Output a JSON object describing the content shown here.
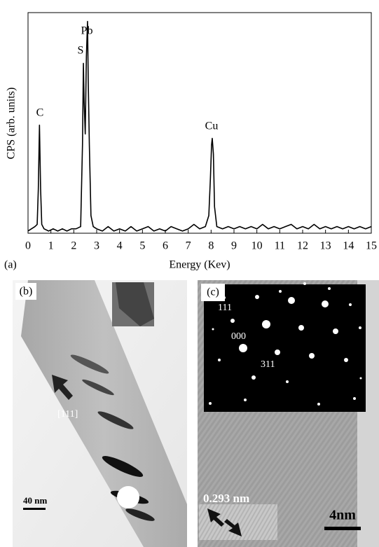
{
  "chart_data": {
    "type": "line",
    "color": "#000000",
    "xlabel": "Energy (Kev)",
    "ylabel": "CPS (arb. units)",
    "panel_label": "(a)",
    "annotations": [
      "C",
      "S",
      "Pb",
      "Cu"
    ],
    "xlim": [
      0,
      15
    ],
    "xticks": [
      0,
      1,
      2,
      3,
      4,
      5,
      6,
      7,
      8,
      9,
      10,
      11,
      12,
      13,
      14,
      15
    ],
    "ylim": [
      0,
      100
    ],
    "x": [
      0,
      0.15,
      0.3,
      0.4,
      0.45,
      0.5,
      0.55,
      0.6,
      0.7,
      0.9,
      1.1,
      1.3,
      1.5,
      1.7,
      1.9,
      2.1,
      2.3,
      2.38,
      2.42,
      2.45,
      2.5,
      2.55,
      2.6,
      2.63,
      2.68,
      2.75,
      2.85,
      3.0,
      3.25,
      3.5,
      3.75,
      4.0,
      4.25,
      4.5,
      4.75,
      5.0,
      5.25,
      5.5,
      5.75,
      6.0,
      6.25,
      6.5,
      6.75,
      7.0,
      7.25,
      7.5,
      7.75,
      7.9,
      7.97,
      8.02,
      8.05,
      8.1,
      8.15,
      8.25,
      8.5,
      8.75,
      9.0,
      9.25,
      9.5,
      9.75,
      10.0,
      10.25,
      10.5,
      10.75,
      11.0,
      11.25,
      11.5,
      11.75,
      12.0,
      12.25,
      12.5,
      12.75,
      13.0,
      13.25,
      13.5,
      13.75,
      14.0,
      14.25,
      14.5,
      14.75,
      15.0
    ],
    "values": [
      1,
      2,
      3,
      4,
      20,
      49,
      20,
      4,
      2,
      1,
      2,
      1,
      2,
      1,
      2,
      2,
      3,
      40,
      77,
      60,
      45,
      80,
      96,
      70,
      40,
      8,
      3,
      2,
      1,
      3,
      1,
      2,
      1,
      3,
      1,
      2,
      3,
      1,
      2,
      1,
      3,
      2,
      1,
      2,
      4,
      2,
      3,
      8,
      25,
      40,
      43,
      36,
      12,
      3,
      2,
      3,
      2,
      3,
      2,
      3,
      2,
      4,
      2,
      3,
      2,
      3,
      4,
      2,
      3,
      2,
      4,
      2,
      3,
      2,
      3,
      2,
      3,
      2,
      3,
      2,
      3
    ]
  },
  "panel_b": {
    "label": "(b)",
    "direction": "[111]",
    "scale": "40 nm"
  },
  "panel_c": {
    "label": "(c)",
    "spots": [
      "111",
      "000",
      "311"
    ],
    "spacing": "0.293 nm",
    "scale": "4nm"
  }
}
